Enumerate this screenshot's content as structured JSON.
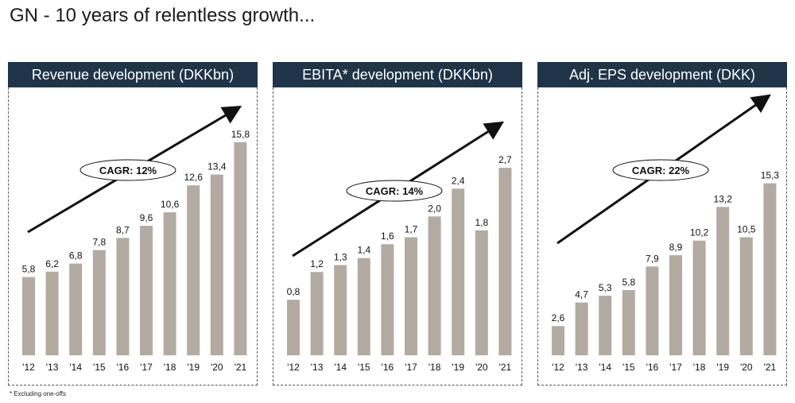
{
  "page": {
    "title": "GN - 10 years of relentless growth...",
    "footnote": "* Excluding one-offs"
  },
  "colors": {
    "header_bg": "#1f3447",
    "bar": "#b3aaa1",
    "text": "#111111"
  },
  "chart_data": [
    {
      "type": "bar",
      "title": "Revenue development (DKKbn)",
      "categories": [
        "'12",
        "'13",
        "'14",
        "'15",
        "'16",
        "'17",
        "'18",
        "'19",
        "'20",
        "'21"
      ],
      "values": [
        5.8,
        6.2,
        6.8,
        7.8,
        8.7,
        9.6,
        10.6,
        12.6,
        13.4,
        15.8
      ],
      "value_labels": [
        "5,8",
        "6,2",
        "6,8",
        "7,8",
        "8,7",
        "9,6",
        "10,6",
        "12,6",
        "13,4",
        "15,8"
      ],
      "annotation": "CAGR: 12%",
      "ylim": [
        0,
        17.5
      ],
      "grid": false
    },
    {
      "type": "bar",
      "title": "EBITA* development (DKKbn)",
      "categories": [
        "'12",
        "'13",
        "'14",
        "'15",
        "'16",
        "'17",
        "'18",
        "'19",
        "'20",
        "'21"
      ],
      "values": [
        0.8,
        1.2,
        1.3,
        1.4,
        1.6,
        1.7,
        2.0,
        2.4,
        1.8,
        2.7
      ],
      "value_labels": [
        "0,8",
        "1,2",
        "1,3",
        "1,4",
        "1,6",
        "1,7",
        "2,0",
        "2,4",
        "1,8",
        "2,7"
      ],
      "annotation": "CAGR: 14%",
      "ylim": [
        0,
        3.4
      ],
      "grid": false
    },
    {
      "type": "bar",
      "title": "Adj. EPS development (DKK)",
      "categories": [
        "'12",
        "'13",
        "'14",
        "'15",
        "'16",
        "'17",
        "'18",
        "'19",
        "'20",
        "'21"
      ],
      "values": [
        2.6,
        4.7,
        5.3,
        5.8,
        7.9,
        8.9,
        10.2,
        13.2,
        10.5,
        15.3
      ],
      "value_labels": [
        "2,6",
        "4,7",
        "5,3",
        "5,8",
        "7,9",
        "8,9",
        "10,2",
        "13,2",
        "10,5",
        "15,3"
      ],
      "annotation": "CAGR: 22%",
      "ylim": [
        0,
        21
      ],
      "grid": false
    }
  ]
}
